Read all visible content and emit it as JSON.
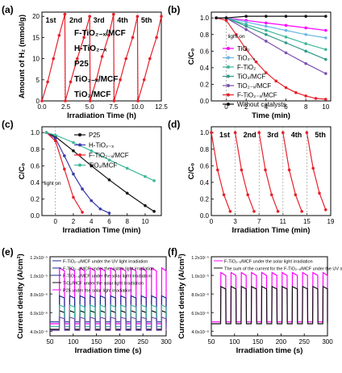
{
  "colors": {
    "red": "#e8202a",
    "blue": "#3a3aa8",
    "black": "#111111",
    "magenta": "#ff00ff",
    "teal": "#3db89a",
    "navy": "#1a2a90",
    "purple": "#7a4fb0",
    "lightblue": "#6ab6e8",
    "gray": "#999999",
    "green": "#2e9a86"
  },
  "chart_data": [
    {
      "panel": "(a)",
      "type": "line",
      "xlabel": "Irradiation Time (h)",
      "ylabel": "Amount of H₂ (mmol/g)",
      "xlim": [
        0,
        12.5
      ],
      "ylim": [
        0,
        21
      ],
      "xticks": [
        "0.0",
        "2.5",
        "5.0",
        "7.5",
        "10.0",
        "12.5"
      ],
      "yticks": [
        "0",
        "5",
        "10",
        "15",
        "20"
      ],
      "cycle_labels": [
        "1st",
        "2nd",
        "3rd",
        "4th",
        "5th"
      ],
      "series_labels": [
        "F-TiO₂₋ₓ/MCF",
        "H-TiO₂₋ₓ",
        "P25",
        "TiO₂₋ₓ/MCF",
        "TiO₂/MCF"
      ],
      "series": [
        {
          "color": "red",
          "x": [
            0,
            0.6,
            1.2,
            1.8,
            2.4
          ],
          "y": [
            0,
            4.5,
            10,
            15.5,
            20.5
          ]
        },
        {
          "color": "red",
          "x": [
            2.4,
            2.45,
            3.0,
            3.7,
            4.4,
            5.0
          ],
          "y": [
            20.5,
            0,
            4.5,
            10,
            15,
            20
          ]
        },
        {
          "color": "red",
          "x": [
            5.0,
            5.05,
            5.7,
            6.3,
            7.0,
            7.5
          ],
          "y": [
            20,
            0,
            5,
            10.5,
            15.5,
            20.5
          ]
        },
        {
          "color": "red",
          "x": [
            7.5,
            7.55,
            8.2,
            8.8,
            9.5,
            10.0
          ],
          "y": [
            20.5,
            0,
            5,
            10,
            15,
            20
          ]
        },
        {
          "color": "red",
          "x": [
            10.0,
            10.05,
            10.7,
            11.3,
            12.0,
            12.5
          ],
          "y": [
            20,
            0,
            5,
            10,
            15,
            20
          ]
        }
      ]
    },
    {
      "panel": "(b)",
      "type": "line",
      "xlabel": "Time (min)",
      "ylabel": "C/C₀",
      "xlim": [
        -1.5,
        10.5
      ],
      "ylim": [
        0,
        1.07
      ],
      "xticks": [
        "0",
        "2",
        "4",
        "6",
        "8",
        "10"
      ],
      "yticks": [
        "0.0",
        "0.2",
        "0.4",
        "0.6",
        "0.8",
        "1.0"
      ],
      "annotation": "light on",
      "series": [
        {
          "name": "TiO₂",
          "color": "magenta",
          "x": [
            -1,
            0,
            2,
            4,
            6,
            8,
            10
          ],
          "y": [
            1,
            1,
            0.97,
            0.94,
            0.91,
            0.88,
            0.85
          ]
        },
        {
          "name": "TiO₂₋ₓ",
          "color": "lightblue",
          "x": [
            -1,
            0,
            2,
            4,
            6,
            8,
            10
          ],
          "y": [
            1,
            1,
            0.95,
            0.9,
            0.85,
            0.8,
            0.76
          ]
        },
        {
          "name": "F-TiO₂",
          "color": "teal",
          "x": [
            -1,
            0,
            2,
            4,
            6,
            8,
            10
          ],
          "y": [
            1,
            1,
            0.92,
            0.85,
            0.77,
            0.69,
            0.62
          ]
        },
        {
          "name": "TiO₂/MCF",
          "color": "green",
          "x": [
            -1,
            0,
            2,
            4,
            6,
            8,
            10
          ],
          "y": [
            1,
            1,
            0.9,
            0.8,
            0.7,
            0.6,
            0.5
          ]
        },
        {
          "name": "TiO₂₋ₓ/MCF",
          "color": "purple",
          "x": [
            -1,
            0,
            2,
            4,
            6,
            8,
            10
          ],
          "y": [
            1,
            1,
            0.86,
            0.72,
            0.58,
            0.45,
            0.33
          ]
        },
        {
          "name": "F-TiO₂₋ₓ/MCF",
          "color": "red",
          "x": [
            -1,
            0,
            1,
            2,
            3,
            4,
            5,
            6,
            7,
            8,
            9,
            10
          ],
          "y": [
            1,
            0.97,
            0.8,
            0.62,
            0.47,
            0.34,
            0.24,
            0.16,
            0.1,
            0.06,
            0.03,
            0.02
          ]
        },
        {
          "name": "Without catalysts",
          "color": "black",
          "x": [
            -1,
            0,
            2,
            4,
            6,
            8,
            10
          ],
          "y": [
            1,
            1,
            1.02,
            1.02,
            1.02,
            1.02,
            1.02
          ]
        }
      ]
    },
    {
      "panel": "(c)",
      "type": "line",
      "xlabel": "Irradiation Time (min)",
      "ylabel": "C/C₀",
      "xlim": [
        -1.5,
        11.8
      ],
      "ylim": [
        0,
        1.07
      ],
      "xticks": [
        "0",
        "2",
        "4",
        "6",
        "8",
        "10"
      ],
      "yticks": [
        "0.0",
        "0.2",
        "0.4",
        "0.6",
        "0.8",
        "1.0"
      ],
      "annotation": "light on",
      "series": [
        {
          "name": "P25",
          "color": "black",
          "x": [
            -1,
            0,
            2,
            4,
            6,
            8,
            10,
            11
          ],
          "y": [
            1,
            0.95,
            0.78,
            0.6,
            0.43,
            0.27,
            0.12,
            0.05
          ]
        },
        {
          "name": "H-TiO₂₋ₓ",
          "color": "blue",
          "x": [
            -1,
            0,
            1,
            2,
            3,
            4,
            5,
            6
          ],
          "y": [
            1,
            0.93,
            0.72,
            0.5,
            0.32,
            0.18,
            0.08,
            0.03
          ]
        },
        {
          "name": "F-TiO₂₋ₓ/MCF",
          "color": "red",
          "x": [
            -1,
            0,
            1,
            2,
            3
          ],
          "y": [
            1,
            0.9,
            0.56,
            0.22,
            0.04
          ]
        },
        {
          "name": "TiO₂/MCF",
          "color": "teal",
          "x": [
            -1,
            0,
            2,
            4,
            6,
            8,
            10,
            11
          ],
          "y": [
            1,
            0.97,
            0.88,
            0.78,
            0.67,
            0.57,
            0.47,
            0.42
          ]
        }
      ]
    },
    {
      "panel": "(d)",
      "type": "line",
      "xlabel": "Irradiation Time (min)",
      "ylabel": "C/C₀",
      "xlim": [
        0,
        19
      ],
      "ylim": [
        0,
        1.07
      ],
      "xticks": [
        "0",
        "3",
        "7",
        "11",
        "15",
        "19"
      ],
      "yticks": [
        "0.0",
        "0.2",
        "0.4",
        "0.6",
        "0.8",
        "1.0"
      ],
      "cycle_labels": [
        "1st",
        "2nd",
        "3rd",
        "4th",
        "5th"
      ],
      "series": [
        {
          "color": "red",
          "x": [
            0,
            1,
            2,
            3
          ],
          "y": [
            1,
            0.55,
            0.25,
            0.05
          ]
        },
        {
          "color": "red",
          "x": [
            3.8,
            4.8,
            5.8,
            6.8
          ],
          "y": [
            1,
            0.55,
            0.25,
            0.05
          ]
        },
        {
          "color": "red",
          "x": [
            7.6,
            8.6,
            9.6,
            10.6
          ],
          "y": [
            1,
            0.55,
            0.25,
            0.05
          ]
        },
        {
          "color": "red",
          "x": [
            11.4,
            12.4,
            13.4,
            14.4
          ],
          "y": [
            1,
            0.55,
            0.25,
            0.05
          ]
        },
        {
          "color": "red",
          "x": [
            15.2,
            16.2,
            17.2,
            18.2
          ],
          "y": [
            1,
            0.57,
            0.27,
            0.07
          ]
        }
      ]
    },
    {
      "panel": "(e)",
      "type": "line",
      "xlabel": "Irradiation time (s)",
      "ylabel": "Current density (A/cm²)",
      "xlim": [
        50,
        300
      ],
      "ylim": [
        3.5,
        12
      ],
      "xticks": [
        "50",
        "100",
        "150",
        "200",
        "250",
        "300"
      ],
      "yticks": [
        "4.0x10⁻⁶",
        "6.0x10⁻⁶",
        "8.0x10⁻⁶",
        "1.0x10⁻⁵",
        "1.2x10⁻⁵"
      ],
      "legend": [
        {
          "text": "F-TiO₂₋ₓ/MCF under the UV light irradiation",
          "color": "navy"
        },
        {
          "text": "F-TiO₂₋ₓ/MCF under the visible light irradiation",
          "color": "navy"
        },
        {
          "text": "F-TiO₂₋ₓ/MCF under the solar light irradiation",
          "color": "navy"
        },
        {
          "text": "TiO₂/MCF under the solar light irradiation",
          "color": "black"
        },
        {
          "text": "P25 under the solar light irradiation",
          "color": "magenta"
        }
      ],
      "pulse": {
        "start": 70,
        "period": 22,
        "on": 11
      },
      "series": [
        {
          "color": "magenta",
          "off": 4.8,
          "on": 10.8
        },
        {
          "color": "navy",
          "off": 5.0,
          "on": 7.8
        },
        {
          "color": "black",
          "off": 4.2,
          "on": 6.2
        },
        {
          "color": "teal",
          "off": 4.5,
          "on": 6.8
        },
        {
          "color": "purple",
          "off": 4.1,
          "on": 5.5
        }
      ]
    },
    {
      "panel": "(f)",
      "type": "line",
      "xlabel": "Irradiation time (s)",
      "ylabel": "Current density (A/cm²)",
      "xlim": [
        50,
        300
      ],
      "ylim": [
        3.5,
        12
      ],
      "xticks": [
        "50",
        "100",
        "150",
        "200",
        "250",
        "300"
      ],
      "yticks": [
        "4.0x10⁻⁶",
        "6.0x10⁻⁶",
        "8.0x10⁻⁶",
        "1.0x10⁻⁵",
        "1.2x10⁻⁵"
      ],
      "legend": [
        {
          "text": "F-TiO₂₋ₓ/MCF under the solar light irradiation",
          "color": "magenta"
        },
        {
          "text": "The sum of the current for the F-TiO₂₋ₓ/MCF under the UV and visible light irradiation",
          "color": "black"
        }
      ],
      "pulse": {
        "start": 70,
        "period": 22,
        "on": 11
      },
      "series": [
        {
          "color": "magenta",
          "off": 5.0,
          "on": 10.3
        },
        {
          "color": "black",
          "off": 4.8,
          "on": 8.8
        }
      ]
    }
  ]
}
